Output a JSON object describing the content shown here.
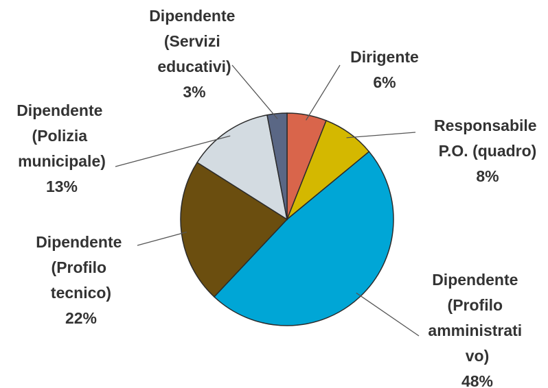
{
  "chart_data": {
    "type": "pie",
    "categories": [
      "Dirigente",
      "Responsabile P.O. (quadro)",
      "Dipendente (Profilo amministrati vo)",
      "Dipendente (Profilo tecnico)",
      "Dipendente (Polizia municipale)",
      "Dipendente (Servizi educativi)"
    ],
    "values": [
      6,
      8,
      48,
      22,
      13,
      3
    ],
    "value_labels": [
      "6%",
      "8%",
      "48%",
      "22%",
      "13%",
      "3%"
    ],
    "colors": [
      "#d9654b",
      "#d4b800",
      "#00a6d6",
      "#6b4e0f",
      "#d3dbe1",
      "#5a6785"
    ]
  }
}
